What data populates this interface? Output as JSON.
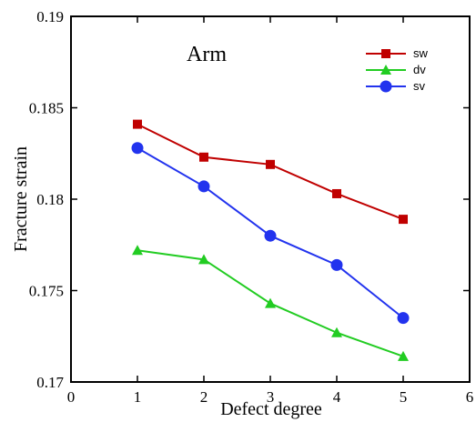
{
  "chart_data": {
    "type": "line",
    "title": "Arm",
    "xlabel": "Defect degree",
    "ylabel": "Fracture strain",
    "xlim": [
      0,
      6
    ],
    "ylim": [
      0.17,
      0.19
    ],
    "x_ticks": [
      "0",
      "1",
      "2",
      "3",
      "4",
      "5",
      "6"
    ],
    "y_ticks": [
      "0.17",
      "0.175",
      "0.18",
      "0.185",
      "0.19"
    ],
    "grid": false,
    "legend_position": "top-right",
    "x": [
      1,
      2,
      3,
      4,
      5
    ],
    "series": [
      {
        "name": "sw",
        "color": "#c00000",
        "marker": "square",
        "values": [
          0.1841,
          0.1823,
          0.1819,
          0.1803,
          0.1789
        ]
      },
      {
        "name": "dv",
        "color": "#22cc22",
        "marker": "triangle",
        "values": [
          0.1772,
          0.1767,
          0.1743,
          0.1727,
          0.1714
        ]
      },
      {
        "name": "sv",
        "color": "#2233ee",
        "marker": "circle",
        "values": [
          0.1828,
          0.1807,
          0.178,
          0.1764,
          0.1735
        ]
      }
    ]
  }
}
